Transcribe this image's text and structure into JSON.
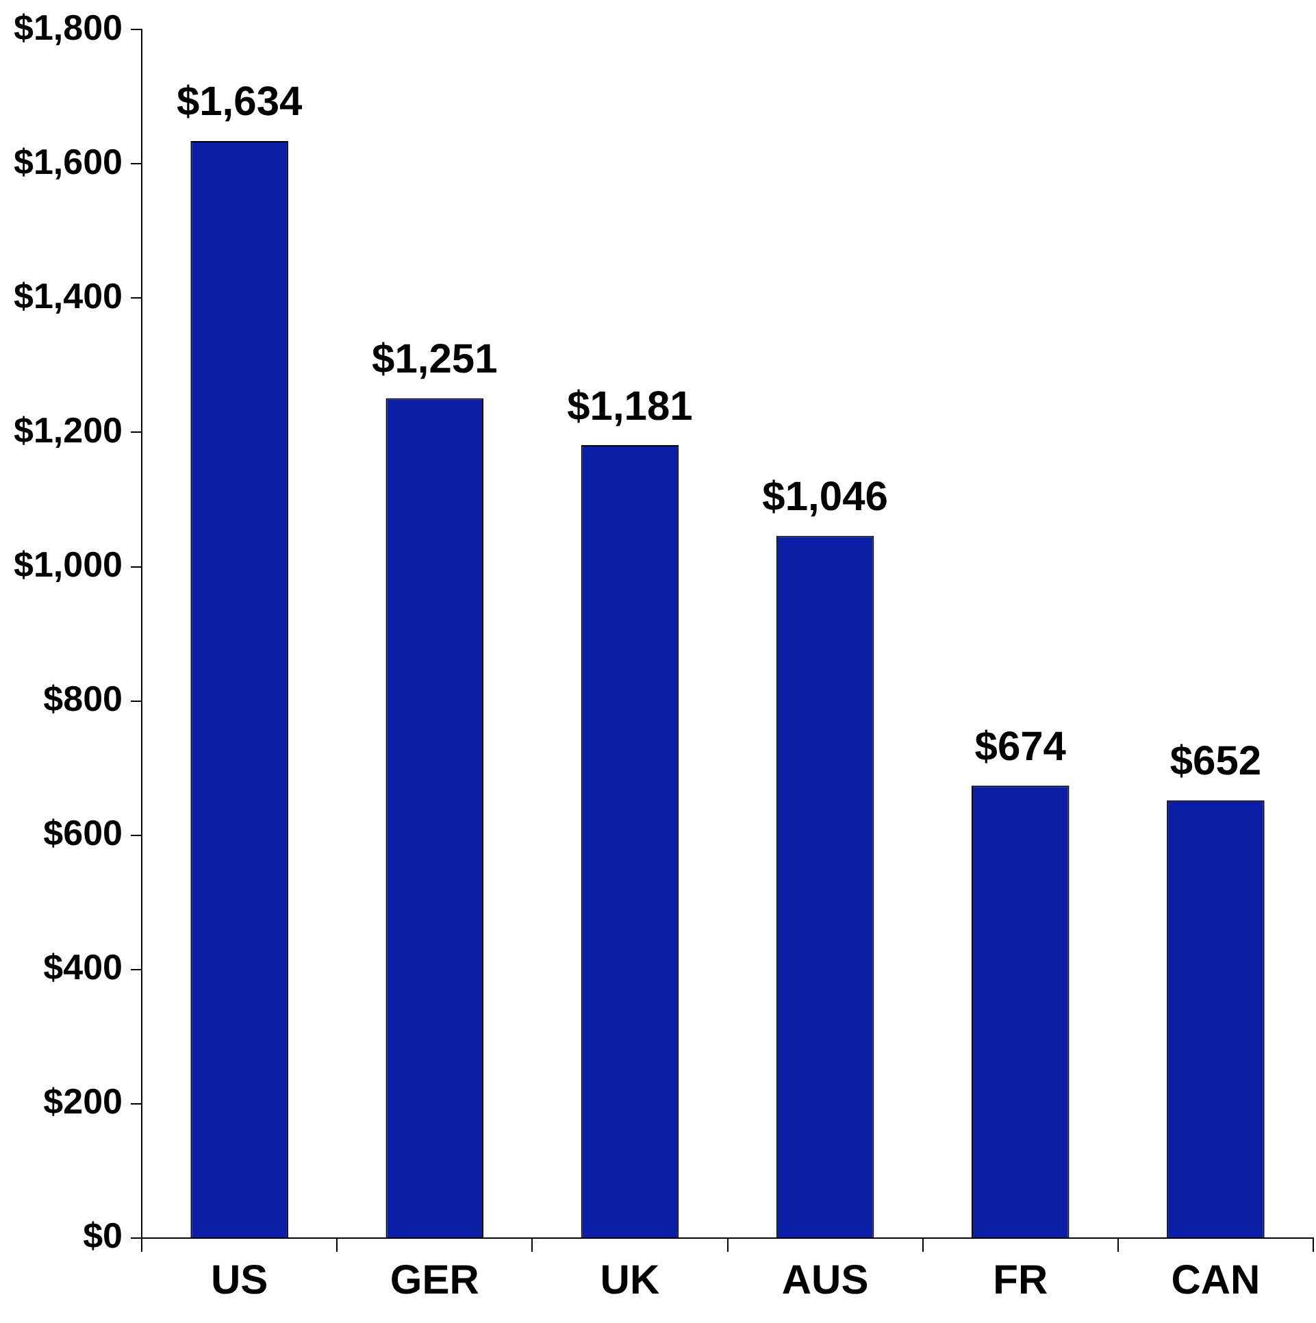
{
  "chart_data": {
    "type": "bar",
    "categories": [
      "US",
      "GER",
      "UK",
      "AUS",
      "FR",
      "CAN"
    ],
    "values": [
      1634,
      1251,
      1181,
      1046,
      674,
      652
    ],
    "value_labels": [
      "$1,634",
      "$1,251",
      "$1,181",
      "$1,046",
      "$674",
      "$652"
    ],
    "color": "#0a1fa6",
    "ylim": [
      0,
      1800
    ],
    "yticks": [
      {
        "value": 0,
        "label": "$0"
      },
      {
        "value": 200,
        "label": "$200"
      },
      {
        "value": 400,
        "label": "$400"
      },
      {
        "value": 600,
        "label": "$600"
      },
      {
        "value": 800,
        "label": "$800"
      },
      {
        "value": 1000,
        "label": "$1,000"
      },
      {
        "value": 1200,
        "label": "$1,200"
      },
      {
        "value": 1400,
        "label": "$1,400"
      },
      {
        "value": 1600,
        "label": "$1,600"
      },
      {
        "value": 1800,
        "label": "$1,800"
      }
    ],
    "grid": false,
    "legend": false
  }
}
